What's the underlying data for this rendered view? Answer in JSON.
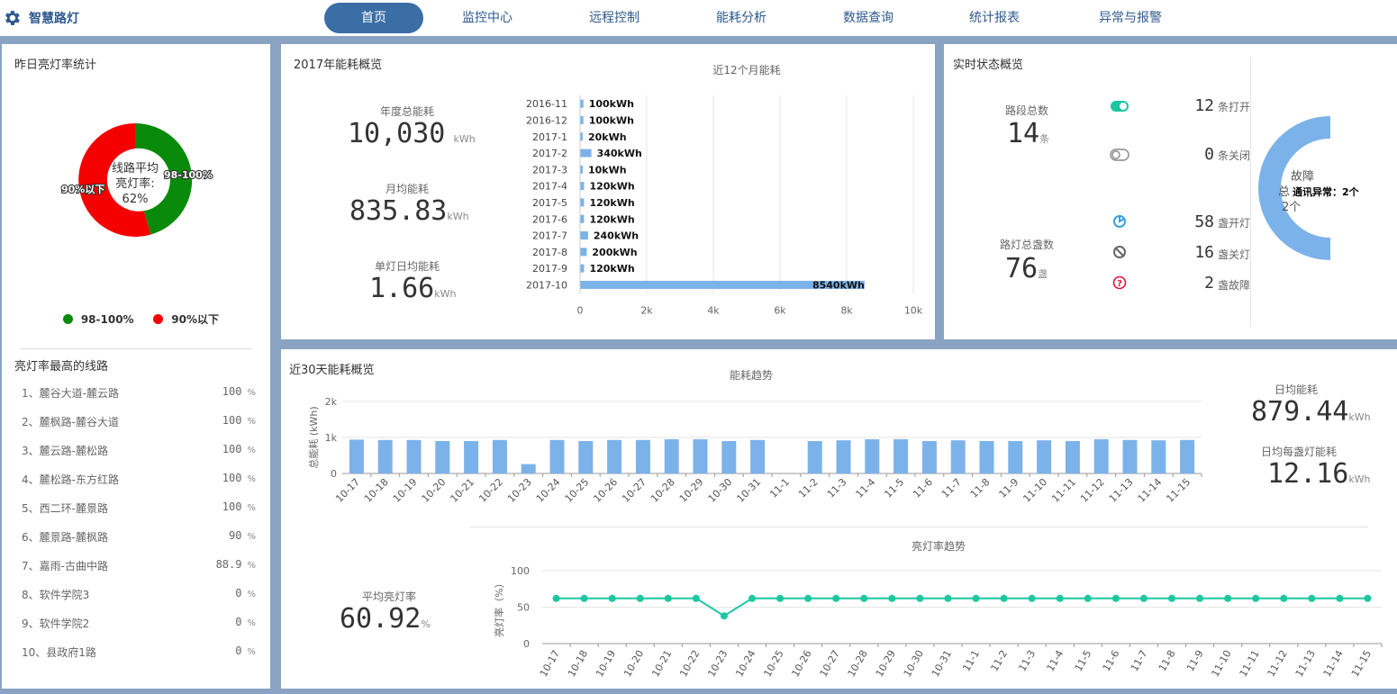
{
  "app": {
    "title": "智慧路灯"
  },
  "nav": {
    "items": [
      "首页",
      "监控中心",
      "远程控制",
      "能耗分析",
      "数据查询",
      "统计报表",
      "异常与报警"
    ],
    "active": 0
  },
  "yesterday": {
    "title": "昨日亮灯率统计",
    "center_line1": "线路平均",
    "center_line2": "亮灯率:",
    "center_value": "62%",
    "slice_label_a": "98-100%",
    "slice_label_b": "90%以下",
    "legend_a": "98-100%",
    "legend_b": "90%以下",
    "color_a": "#0a8a0a",
    "color_b": "#f40000"
  },
  "top_lines": {
    "title": "亮灯率最高的线路",
    "unit": "%",
    "rows": [
      {
        "name": "1、麓谷大道-麓云路",
        "value": "100"
      },
      {
        "name": "2、麓枫路-麓谷大道",
        "value": "100"
      },
      {
        "name": "3、麓云路-麓松路",
        "value": "100"
      },
      {
        "name": "4、麓松路-东方红路",
        "value": "100"
      },
      {
        "name": "5、西二环-麓景路",
        "value": "100"
      },
      {
        "name": "6、麓景路-麓枫路",
        "value": "90"
      },
      {
        "name": "7、嘉雨-古曲中路",
        "value": "88.9"
      },
      {
        "name": "8、软件学院3",
        "value": "0"
      },
      {
        "name": "9、软件学院2",
        "value": "0"
      },
      {
        "name": "10、县政府1路",
        "value": "0"
      }
    ]
  },
  "energy2017": {
    "title": "2017年能耗概览",
    "annual_label": "年度总能耗",
    "annual_value": "10,030",
    "annual_unit": "kWh",
    "monthly_label": "月均能耗",
    "monthly_value": "835.83",
    "monthly_unit": "kWh",
    "perlamp_label": "单灯日均能耗",
    "perlamp_value": "1.66",
    "perlamp_unit": "kWh"
  },
  "realtime": {
    "title": "实时状态概览",
    "segments_label": "路段总数",
    "segments_value": "14",
    "segments_unit": "条",
    "lamps_label": "路灯总盏数",
    "lamps_value": "76",
    "lamps_unit": "盏",
    "open_value": "12",
    "open_label": "条打开",
    "closed_value": "0",
    "closed_label": "条关闭",
    "lamp_on_value": "58",
    "lamp_on_label": "盏开灯",
    "lamp_off_value": "16",
    "lamp_off_label": "盏关灯",
    "lamp_fault_value": "2",
    "lamp_fault_label": "盏故障",
    "fault_title": "故障",
    "fault_total_prefix": "总",
    "fault_total": "2个",
    "fault_tooltip": "通讯异常：2个",
    "toggle_color": "#1bc7a0",
    "fault_color": "#e0143c",
    "gauge_color": "#7cb2ea"
  },
  "last30": {
    "title": "近30天能耗概览",
    "daily_label": "日均能耗",
    "daily_value": "879.44",
    "daily_unit": "kWh",
    "perlamp_label": "日均每盏灯能耗",
    "perlamp_value": "12.16",
    "perlamp_unit": "kWh",
    "avg_rate_label": "平均亮灯率",
    "avg_rate_value": "60.92",
    "avg_rate_unit": "%"
  },
  "chart_data": [
    {
      "type": "bar",
      "orientation": "horizontal",
      "title": "近12个月能耗",
      "categories": [
        "2016-11",
        "2016-12",
        "2017-1",
        "2017-2",
        "2017-3",
        "2017-4",
        "2017-5",
        "2017-6",
        "2017-7",
        "2017-8",
        "2017-9",
        "2017-10"
      ],
      "values": [
        100,
        100,
        20,
        340,
        10,
        120,
        120,
        120,
        240,
        200,
        120,
        8540
      ],
      "data_labels": [
        "100kWh",
        "100kWh",
        "20kWh",
        "340kWh",
        "10kWh",
        "120kWh",
        "120kWh",
        "120kWh",
        "240kWh",
        "200kWh",
        "120kWh",
        "8540kWh"
      ],
      "xticks": [
        "0",
        "2k",
        "4k",
        "6k",
        "8k",
        "10k"
      ],
      "xlim": [
        0,
        10000
      ],
      "grid": true,
      "color": "#7cb2ea"
    },
    {
      "type": "bar",
      "title": "能耗趋势",
      "ylabel": "总能耗 (kWh)",
      "yticks": [
        "0",
        "1k",
        "2k"
      ],
      "ylim": [
        0,
        2000
      ],
      "categories": [
        "10-17",
        "10-18",
        "10-19",
        "10-20",
        "10-21",
        "10-22",
        "10-23",
        "10-24",
        "10-25",
        "10-26",
        "10-27",
        "10-28",
        "10-29",
        "10-30",
        "10-31",
        "11-1",
        "11-2",
        "11-3",
        "11-4",
        "11-5",
        "11-6",
        "11-7",
        "11-8",
        "11-9",
        "11-10",
        "11-11",
        "11-12",
        "11-13",
        "11-14",
        "11-15"
      ],
      "values": [
        940,
        930,
        930,
        900,
        900,
        930,
        260,
        930,
        900,
        930,
        930,
        950,
        950,
        900,
        930,
        0,
        900,
        920,
        950,
        950,
        900,
        920,
        900,
        900,
        920,
        900,
        950,
        930,
        920,
        930
      ],
      "grid": true,
      "color": "#7cb2ea"
    },
    {
      "type": "line",
      "title": "亮灯率趋势",
      "ylabel": "亮灯率（%）",
      "yticks": [
        "0",
        "50",
        "100"
      ],
      "ylim": [
        0,
        100
      ],
      "categories": [
        "10-17",
        "10-18",
        "10-19",
        "10-20",
        "10-21",
        "10-22",
        "10-23",
        "10-24",
        "10-25",
        "10-26",
        "10-27",
        "10-28",
        "10-29",
        "10-30",
        "10-31",
        "11-1",
        "11-2",
        "11-3",
        "11-4",
        "11-5",
        "11-6",
        "11-7",
        "11-8",
        "11-9",
        "11-10",
        "11-11",
        "11-12",
        "11-13",
        "11-14",
        "11-15"
      ],
      "values": [
        62,
        62,
        62,
        62,
        62,
        62,
        38,
        62,
        62,
        62,
        62,
        62,
        62,
        62,
        62,
        62,
        62,
        62,
        62,
        62,
        62,
        62,
        62,
        62,
        62,
        62,
        62,
        62,
        62,
        62
      ],
      "grid": true,
      "color": "#1bc7a0"
    }
  ]
}
